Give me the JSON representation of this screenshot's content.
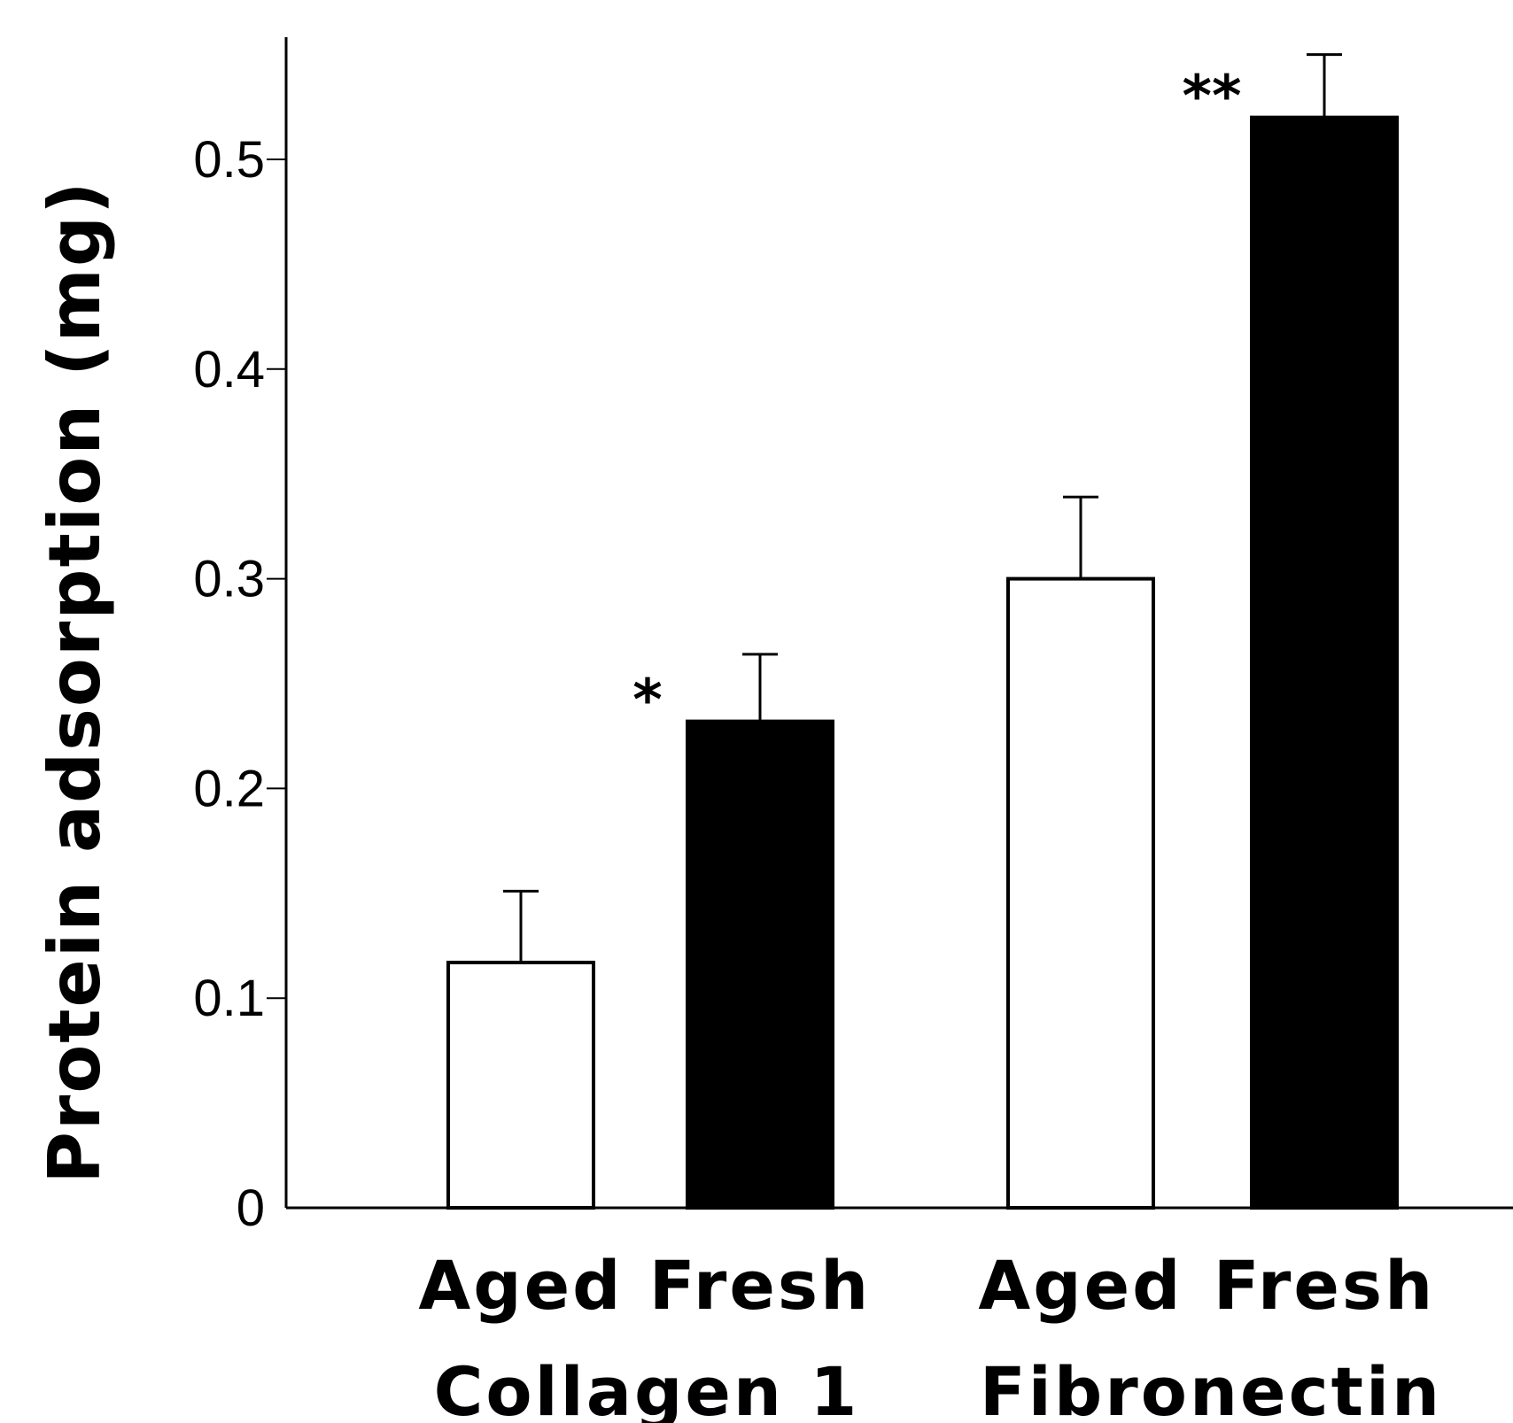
{
  "chart_data": {
    "type": "bar",
    "ylabel": "Protein adsorption (mg)",
    "xlabel": "",
    "ylim": [
      0,
      0.55
    ],
    "yticks": [
      0,
      0.1,
      0.2,
      0.3,
      0.4,
      0.5
    ],
    "ytick_labels": [
      "0",
      "0.1",
      "0.2",
      "0.3",
      "0.4",
      "0.5"
    ],
    "grid": false,
    "groups": [
      {
        "name": "Collagen 1",
        "bars": [
          {
            "label": "Aged",
            "value": 0.117,
            "error": 0.034,
            "fill": "#ffffff",
            "sig": ""
          },
          {
            "label": "Fresh",
            "value": 0.232,
            "error": 0.032,
            "fill": "#000000",
            "sig": "*"
          }
        ]
      },
      {
        "name": "Fibronectin",
        "bars": [
          {
            "label": "Aged",
            "value": 0.3,
            "error": 0.039,
            "fill": "#ffffff",
            "sig": ""
          },
          {
            "label": "Fresh",
            "value": 0.52,
            "error": 0.03,
            "fill": "#000000",
            "sig": "**"
          }
        ]
      }
    ]
  }
}
